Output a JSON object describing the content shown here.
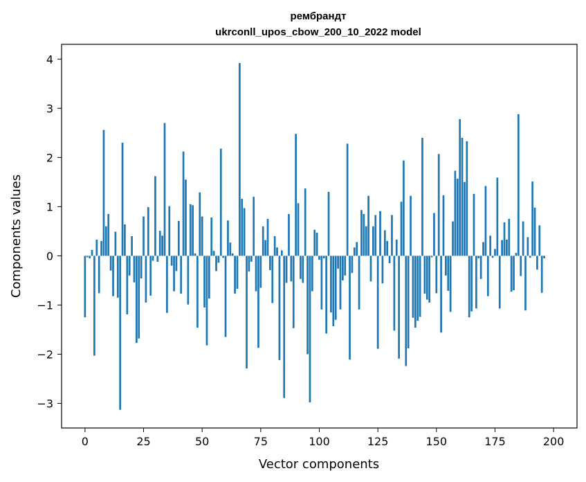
{
  "chart_data": {
    "type": "bar",
    "title": "рембрандт",
    "subtitle": "ukrconll_upos_cbow_200_10_2022 model",
    "xlabel": "Vector components",
    "ylabel": "Components values",
    "xlim": [
      -10,
      210
    ],
    "ylim": [
      -3.5,
      4.3
    ],
    "xticks": [
      0,
      25,
      50,
      75,
      100,
      125,
      150,
      175,
      200
    ],
    "yticks": [
      -3,
      -2,
      -1,
      0,
      1,
      2,
      3,
      4
    ],
    "grid": false,
    "bar_color": "#1f77b4",
    "values": [
      -1.25,
      -0.03,
      -0.05,
      0.12,
      -2.03,
      0.33,
      -0.76,
      0.3,
      2.56,
      0.6,
      0.85,
      -0.3,
      -0.82,
      0.49,
      -0.85,
      -3.13,
      2.3,
      0.64,
      -1.19,
      -0.4,
      0.4,
      -0.54,
      -1.77,
      -1.68,
      -0.46,
      0.8,
      -0.95,
      0.99,
      -0.81,
      -0.1,
      1.62,
      -0.12,
      0.51,
      0.41,
      2.7,
      -1.16,
      1.01,
      -0.2,
      -0.72,
      -0.31,
      0.71,
      -0.77,
      2.12,
      1.55,
      -0.99,
      1.05,
      1.03,
      0.05,
      -1.46,
      1.29,
      0.8,
      -1.05,
      -1.82,
      -0.87,
      0.78,
      0.1,
      -0.31,
      -0.14,
      2.18,
      -0.04,
      -1.65,
      0.72,
      0.27,
      0.05,
      -0.77,
      -0.67,
      3.92,
      1.16,
      0.97,
      -2.29,
      -0.32,
      -0.12,
      1.2,
      -0.72,
      -1.87,
      -0.65,
      0.6,
      0.32,
      0.75,
      -0.29,
      -0.96,
      0.4,
      0.17,
      -2.12,
      0.11,
      -2.89,
      -0.55,
      0.85,
      -0.52,
      -1.47,
      2.48,
      1.07,
      -0.47,
      -0.55,
      1.37,
      -2.0,
      -2.98,
      -0.72,
      0.53,
      0.47,
      -0.08,
      -1.09,
      -0.05,
      -1.58,
      1.3,
      -1.15,
      -1.43,
      -1.3,
      -0.26,
      -1.09,
      -0.5,
      -0.4,
      2.28,
      -2.11,
      -0.35,
      0.17,
      0.28,
      -1.09,
      0.93,
      0.85,
      0.6,
      1.22,
      -0.52,
      0.6,
      0.83,
      -1.89,
      0.91,
      -0.56,
      0.52,
      0.3,
      -0.15,
      0.83,
      -1.52,
      0.33,
      -2.09,
      1.1,
      1.94,
      -2.24,
      -1.88,
      1.22,
      -1.26,
      -1.46,
      -1.32,
      -1.24,
      2.4,
      -0.77,
      -0.89,
      -0.95,
      -0.03,
      0.87,
      -0.76,
      2.07,
      -1.56,
      1.23,
      -0.4,
      -0.71,
      -1.14,
      0.7,
      1.73,
      1.57,
      2.78,
      2.4,
      1.5,
      2.33,
      -1.25,
      -1.13,
      1.26,
      -1.07,
      -0.05,
      -0.47,
      0.28,
      1.42,
      -0.82,
      0.41,
      -0.04,
      0.14,
      1.59,
      -1.07,
      0.32,
      0.68,
      0.33,
      0.75,
      -0.73,
      -0.7,
      0.06,
      2.88,
      -0.41,
      0.7,
      -1.11,
      0.38,
      -0.04,
      1.51,
      0.98,
      -0.28,
      0.62,
      -0.75,
      -0.05
    ]
  }
}
